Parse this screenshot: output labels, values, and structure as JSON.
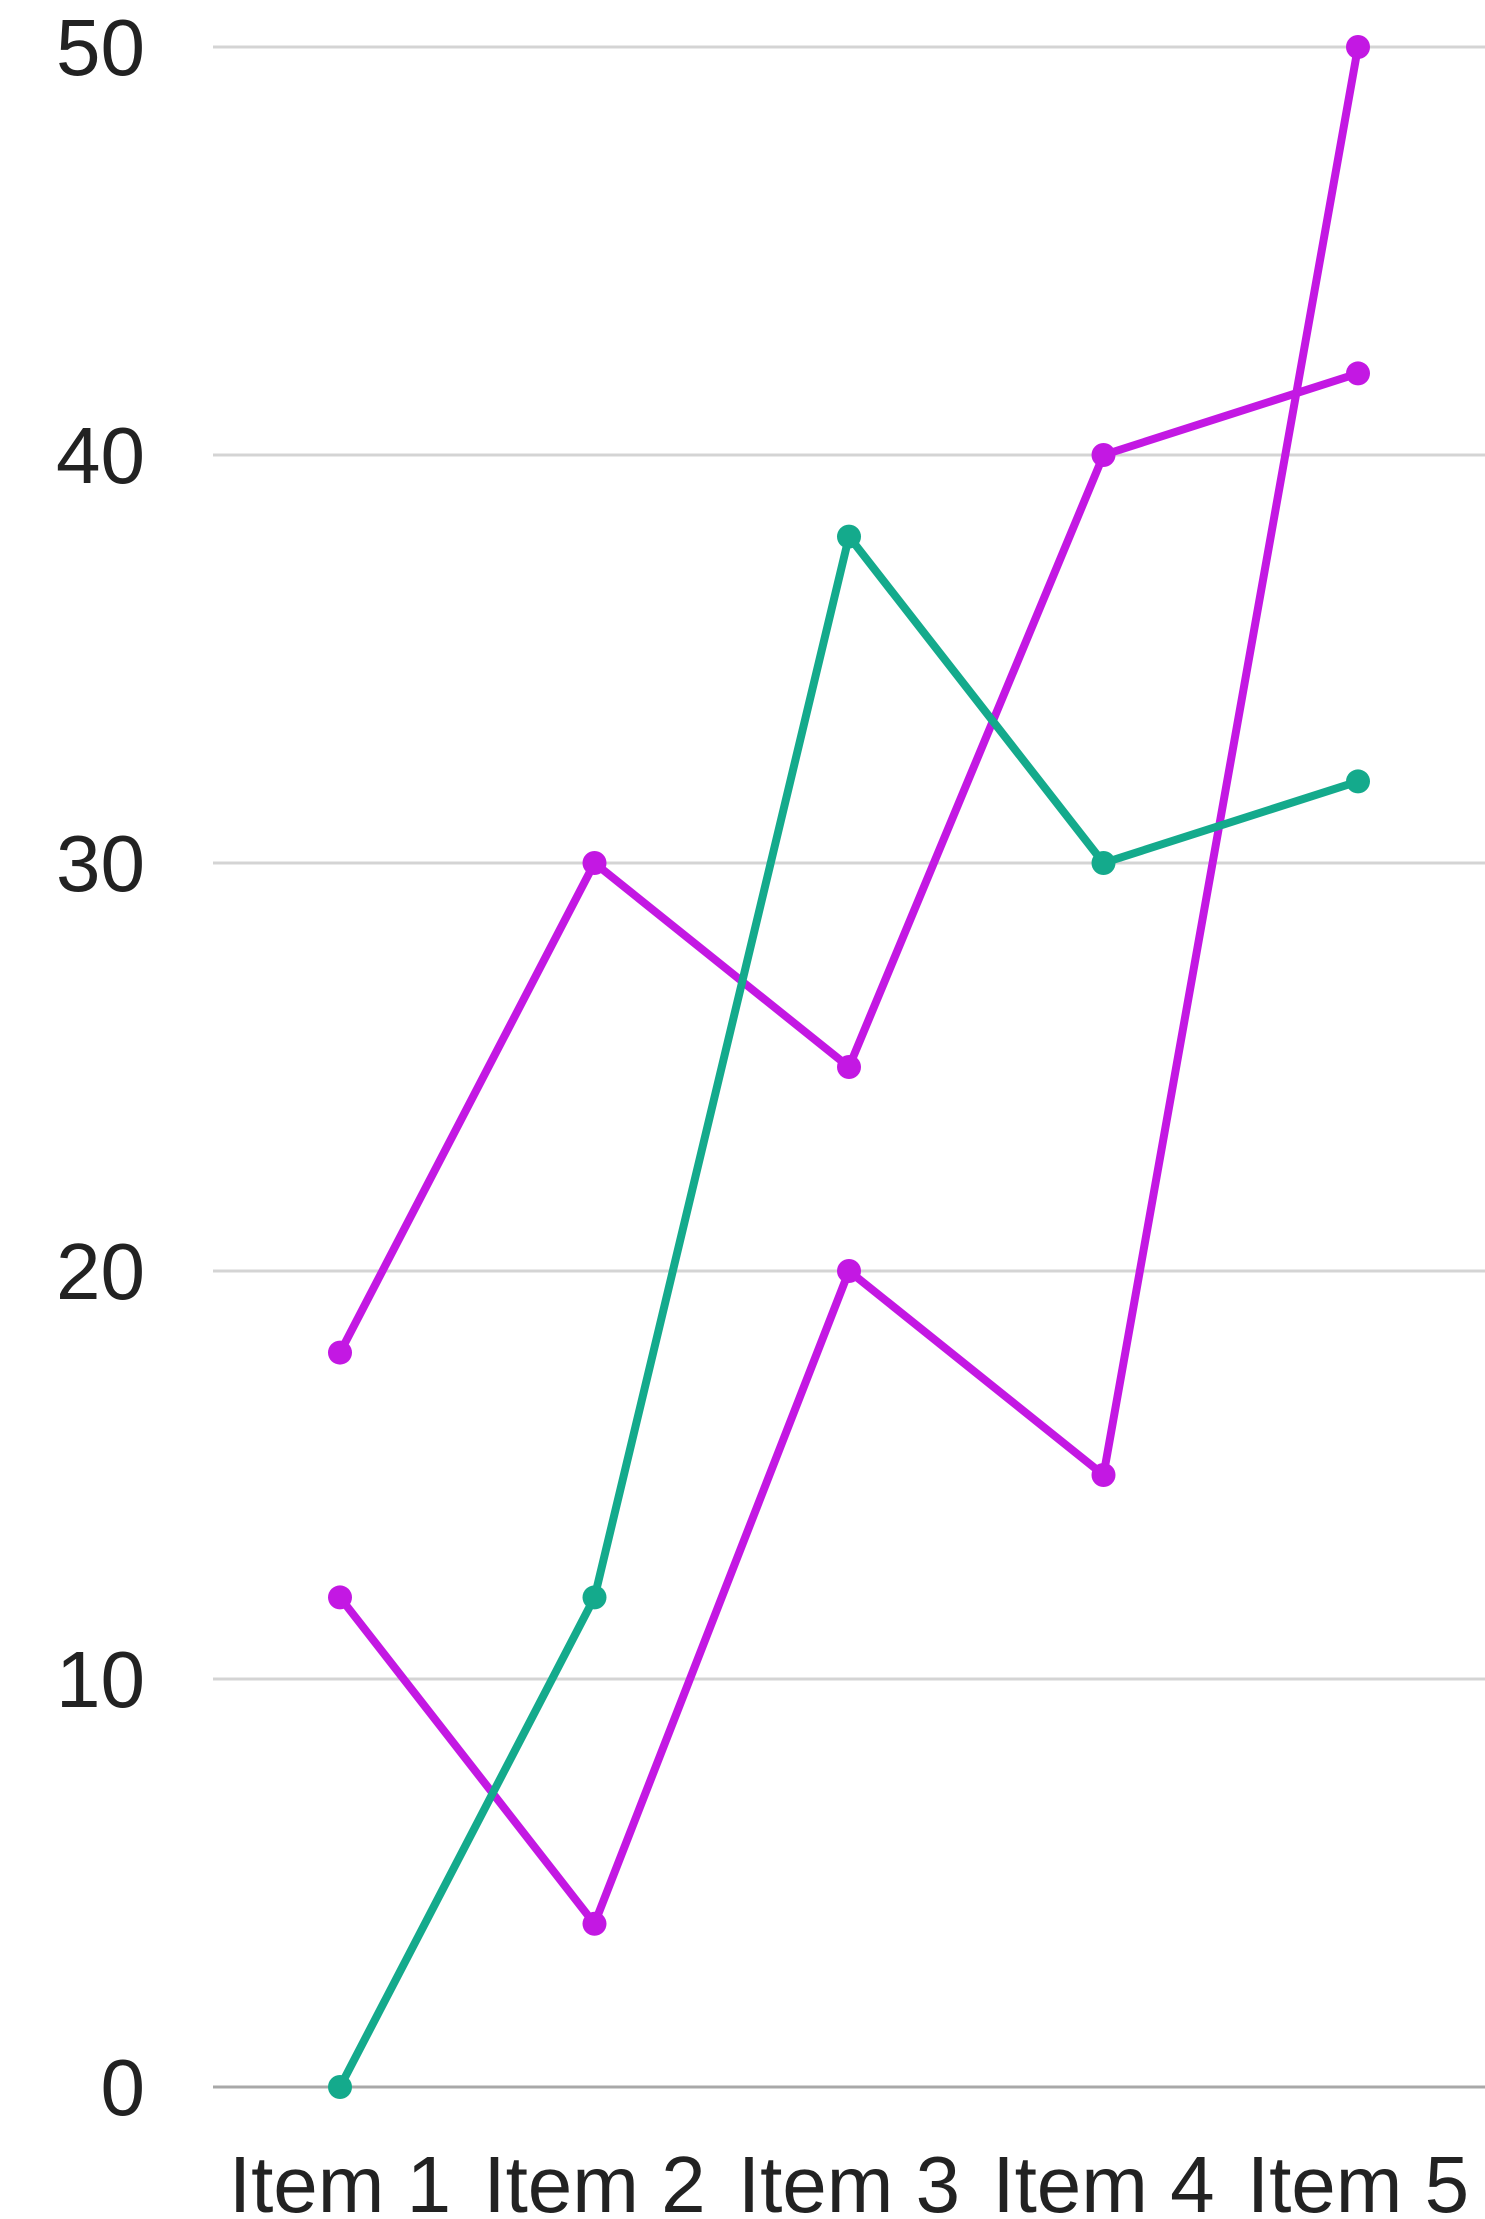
{
  "chart_data": {
    "type": "line",
    "categories": [
      "Item 1",
      "Item 2",
      "Item 3",
      "Item 4",
      "Item 5"
    ],
    "ylim": [
      0,
      50
    ],
    "yticks": [
      0,
      10,
      20,
      30,
      40,
      50
    ],
    "ytick_labels": [
      "0",
      "10",
      "20",
      "30",
      "40",
      "50"
    ],
    "grid": true,
    "legend": "none",
    "series": [
      {
        "color": "#c318e3",
        "values": [
          12,
          4,
          20,
          15,
          50
        ]
      },
      {
        "color": "#c318e3",
        "values": [
          18,
          30,
          25,
          40,
          42
        ]
      },
      {
        "color": "#14aa8c",
        "values": [
          0,
          12,
          38,
          30,
          32
        ]
      }
    ]
  }
}
